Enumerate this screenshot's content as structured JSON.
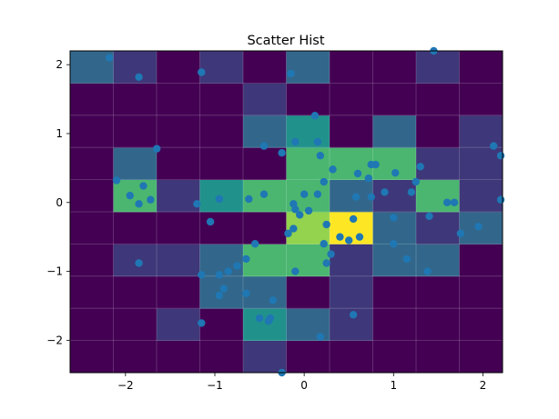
{
  "chart_data": {
    "type": "heatmap",
    "title": "Scatter Hist",
    "xlabel": "",
    "ylabel": "",
    "xlim": [
      -2.62,
      2.22
    ],
    "ylim": [
      -2.47,
      2.2
    ],
    "x_edges": [
      -2.62,
      -2.136,
      -1.652,
      -1.168,
      -0.684,
      -0.2,
      0.284,
      0.768,
      1.252,
      1.736,
      2.22
    ],
    "y_edges": [
      -2.47,
      -2.003,
      -1.536,
      -1.069,
      -0.602,
      -0.135,
      0.332,
      0.799,
      1.266,
      1.733,
      2.2
    ],
    "counts": [
      [
        0,
        0,
        0,
        0,
        1,
        0,
        0,
        0,
        0,
        0
      ],
      [
        0,
        0,
        1,
        0,
        3,
        2,
        1,
        0,
        0,
        0
      ],
      [
        0,
        0,
        0,
        2,
        2,
        0,
        1,
        0,
        0,
        0
      ],
      [
        0,
        1,
        1,
        2,
        4,
        4,
        1,
        2,
        2,
        0
      ],
      [
        0,
        0,
        0,
        0,
        0,
        5,
        6,
        2,
        1,
        2
      ],
      [
        0,
        4,
        1,
        3,
        4,
        4,
        2,
        1,
        4,
        1
      ],
      [
        0,
        2,
        0,
        0,
        0,
        4,
        4,
        4,
        1,
        1
      ],
      [
        0,
        0,
        0,
        0,
        2,
        3,
        0,
        2,
        0,
        1
      ],
      [
        0,
        0,
        0,
        0,
        1,
        0,
        0,
        0,
        0,
        0
      ],
      [
        2,
        1,
        0,
        1,
        0,
        2,
        0,
        0,
        1,
        0
      ]
    ],
    "colormap": "viridis",
    "xticks": [
      -2,
      -1,
      0,
      1,
      2
    ],
    "yticks": [
      -2,
      -1,
      0,
      1,
      2
    ],
    "xtick_labels": [
      "−2",
      "−1",
      "0",
      "1",
      "2"
    ],
    "ytick_labels": [
      "−2",
      "−1",
      "0",
      "1",
      "2"
    ],
    "grid": true,
    "scatter_color": "#1f77b4",
    "scatter_points": [
      [
        -2.18,
        2.1
      ],
      [
        -1.85,
        1.82
      ],
      [
        -1.15,
        1.89
      ],
      [
        -0.15,
        1.87
      ],
      [
        1.45,
        2.2
      ],
      [
        0.12,
        1.26
      ],
      [
        -0.1,
        0.88
      ],
      [
        0.15,
        0.88
      ],
      [
        -0.45,
        0.82
      ],
      [
        -1.65,
        0.78
      ],
      [
        -0.25,
        0.72
      ],
      [
        0.18,
        0.68
      ],
      [
        0.32,
        0.48
      ],
      [
        0.6,
        0.42
      ],
      [
        0.75,
        0.55
      ],
      [
        0.8,
        0.55
      ],
      [
        1.02,
        0.43
      ],
      [
        1.3,
        0.52
      ],
      [
        2.12,
        0.82
      ],
      [
        2.2,
        0.68
      ],
      [
        -2.1,
        0.32
      ],
      [
        -1.8,
        0.24
      ],
      [
        -1.95,
        0.1
      ],
      [
        -1.72,
        0.04
      ],
      [
        -1.85,
        -0.02
      ],
      [
        -1.2,
        -0.02
      ],
      [
        -0.95,
        0.05
      ],
      [
        -0.45,
        0.12
      ],
      [
        -0.62,
        0.05
      ],
      [
        0.15,
        0.12
      ],
      [
        -0.12,
        -0.02
      ],
      [
        0.0,
        0.12
      ],
      [
        0.22,
        0.3
      ],
      [
        0.72,
        0.35
      ],
      [
        0.58,
        0.08
      ],
      [
        0.9,
        0.15
      ],
      [
        0.75,
        0.08
      ],
      [
        1.25,
        0.3
      ],
      [
        1.2,
        0.15
      ],
      [
        1.6,
        0.0
      ],
      [
        1.68,
        0.0
      ],
      [
        2.2,
        0.04
      ],
      [
        -1.05,
        -0.28
      ],
      [
        -0.1,
        -0.1
      ],
      [
        -0.05,
        -0.18
      ],
      [
        0.05,
        -0.12
      ],
      [
        -0.12,
        -0.38
      ],
      [
        -0.18,
        -0.45
      ],
      [
        0.25,
        -0.32
      ],
      [
        0.22,
        -0.6
      ],
      [
        0.55,
        -0.24
      ],
      [
        0.4,
        -0.5
      ],
      [
        0.5,
        -0.55
      ],
      [
        0.62,
        -0.5
      ],
      [
        1.0,
        -0.22
      ],
      [
        1.4,
        -0.2
      ],
      [
        1.75,
        -0.45
      ],
      [
        1.95,
        -0.35
      ],
      [
        1.0,
        -0.6
      ],
      [
        1.15,
        -0.82
      ],
      [
        1.38,
        -1.0
      ],
      [
        -0.55,
        -0.6
      ],
      [
        -0.65,
        -0.82
      ],
      [
        -1.85,
        -0.88
      ],
      [
        -1.15,
        -1.05
      ],
      [
        -0.95,
        -1.05
      ],
      [
        -0.85,
        -1.0
      ],
      [
        -0.75,
        -0.92
      ],
      [
        -0.1,
        -1.0
      ],
      [
        0.25,
        -0.88
      ],
      [
        0.3,
        -0.75
      ],
      [
        -0.9,
        -1.25
      ],
      [
        -0.95,
        -1.35
      ],
      [
        -0.65,
        -1.32
      ],
      [
        -0.35,
        -1.42
      ],
      [
        -1.15,
        -1.75
      ],
      [
        -0.5,
        -1.68
      ],
      [
        -0.4,
        -1.72
      ],
      [
        -0.38,
        -1.68
      ],
      [
        0.55,
        -1.63
      ],
      [
        0.18,
        -1.95
      ],
      [
        -0.25,
        -2.47
      ]
    ]
  }
}
